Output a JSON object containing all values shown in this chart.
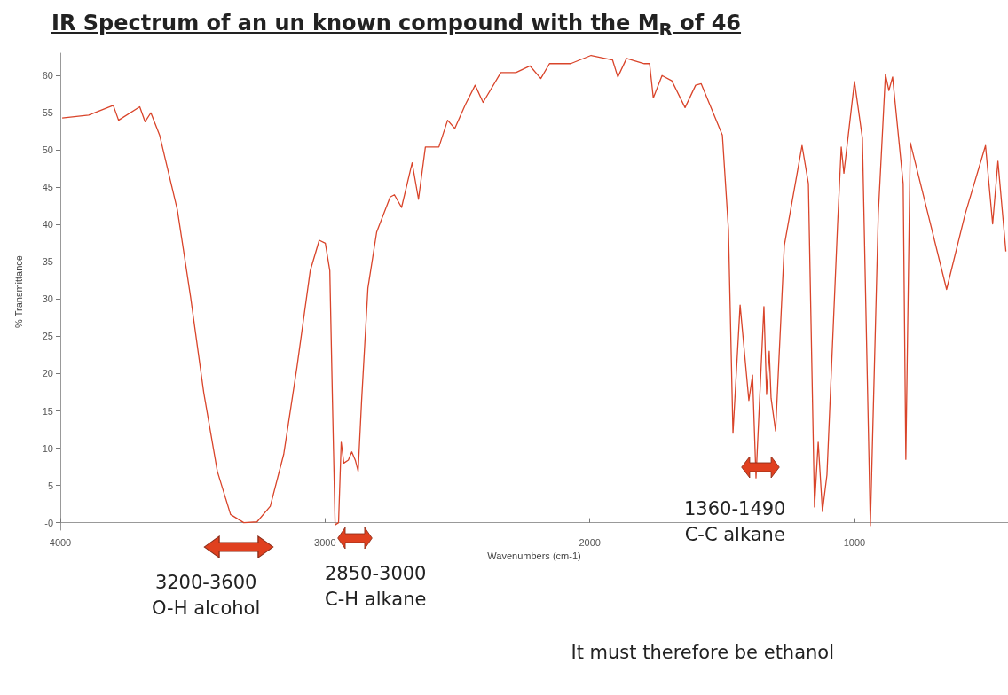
{
  "chart_data": {
    "type": "line",
    "title": "IR Spectrum of an un known compound with the M$_{R}$ of 46",
    "xlabel": "Wavenumbers (cm-1)",
    "ylabel": "% Transmittance",
    "x": [
      3993,
      3893,
      3800,
      3780,
      3700,
      3680,
      3658,
      3625,
      3605,
      3558,
      3508,
      3458,
      3407,
      3357,
      3307,
      3257,
      3207,
      3156,
      3106,
      3056,
      3022,
      2999,
      2982,
      2972,
      2962,
      2949,
      2939,
      2929,
      2912,
      2899,
      2885,
      2875,
      2862,
      2838,
      2805,
      2754,
      2738,
      2711,
      2671,
      2647,
      2621,
      2570,
      2537,
      2510,
      2470,
      2433,
      2403,
      2336,
      2279,
      2226,
      2185,
      2152,
      2072,
      1995,
      1914,
      1894,
      1861,
      1794,
      1774,
      1760,
      1727,
      1690,
      1640,
      1600,
      1579,
      1499,
      1476,
      1459,
      1432,
      1399,
      1385,
      1372,
      1342,
      1332,
      1322,
      1315,
      1298,
      1265,
      1198,
      1174,
      1151,
      1137,
      1121,
      1104,
      1064,
      1050,
      1040,
      1000,
      970,
      940,
      910,
      883,
      870,
      856,
      816,
      806,
      789,
      722,
      652,
      582,
      505,
      478,
      458,
      428
    ],
    "series": [
      {
        "color": "#d9442a",
        "values": [
          54.3,
          54.7,
          56,
          54,
          55.8,
          53.8,
          55,
          52,
          49,
          42,
          30.3,
          17.4,
          6.9,
          1.1,
          0,
          0.1,
          2.2,
          9.2,
          20.9,
          33.8,
          37.9,
          37.5,
          33.8,
          16.3,
          -0.3,
          0,
          10.8,
          8,
          8.4,
          9.5,
          8.3,
          6.9,
          16.3,
          31.5,
          39,
          43.7,
          44,
          42.3,
          48.3,
          43.4,
          50.4,
          50.4,
          54,
          52.9,
          56.1,
          58.7,
          56.4,
          60.4,
          60.4,
          61.3,
          59.6,
          61.6,
          61.6,
          62.7,
          62.1,
          59.8,
          62.3,
          61.6,
          61.6,
          57,
          60,
          59.3,
          55.7,
          58.7,
          58.9,
          52,
          39.3,
          12,
          29.2,
          16.4,
          19.8,
          6,
          29,
          17.2,
          23,
          16.7,
          12.3,
          37.2,
          50.6,
          45.5,
          2.1,
          10.8,
          1.5,
          6.4,
          39.8,
          50.4,
          46.9,
          59.2,
          51.6,
          -0.4,
          41.4,
          60.2,
          58,
          59.8,
          45.5,
          8.5,
          51,
          41.4,
          31.3,
          41.4,
          50.6,
          40.1,
          48.5,
          36.4
        ]
      }
    ],
    "xlim": [
      4000,
      420
    ],
    "xticks": [
      4000,
      3000,
      2000,
      1000
    ],
    "ylim": [
      -1,
      63
    ],
    "yticks": [
      {
        "value": 0,
        "label": "-0"
      },
      5,
      10,
      15,
      20,
      25,
      30,
      35,
      40,
      45,
      50,
      55,
      60
    ],
    "grid": false,
    "annotations": [
      "3200-3600\nO-H alcohol",
      "2850-3000\nC-H alkane",
      "1360-1490\nC-C alkane",
      "It must therefore be ethanol"
    ]
  }
}
